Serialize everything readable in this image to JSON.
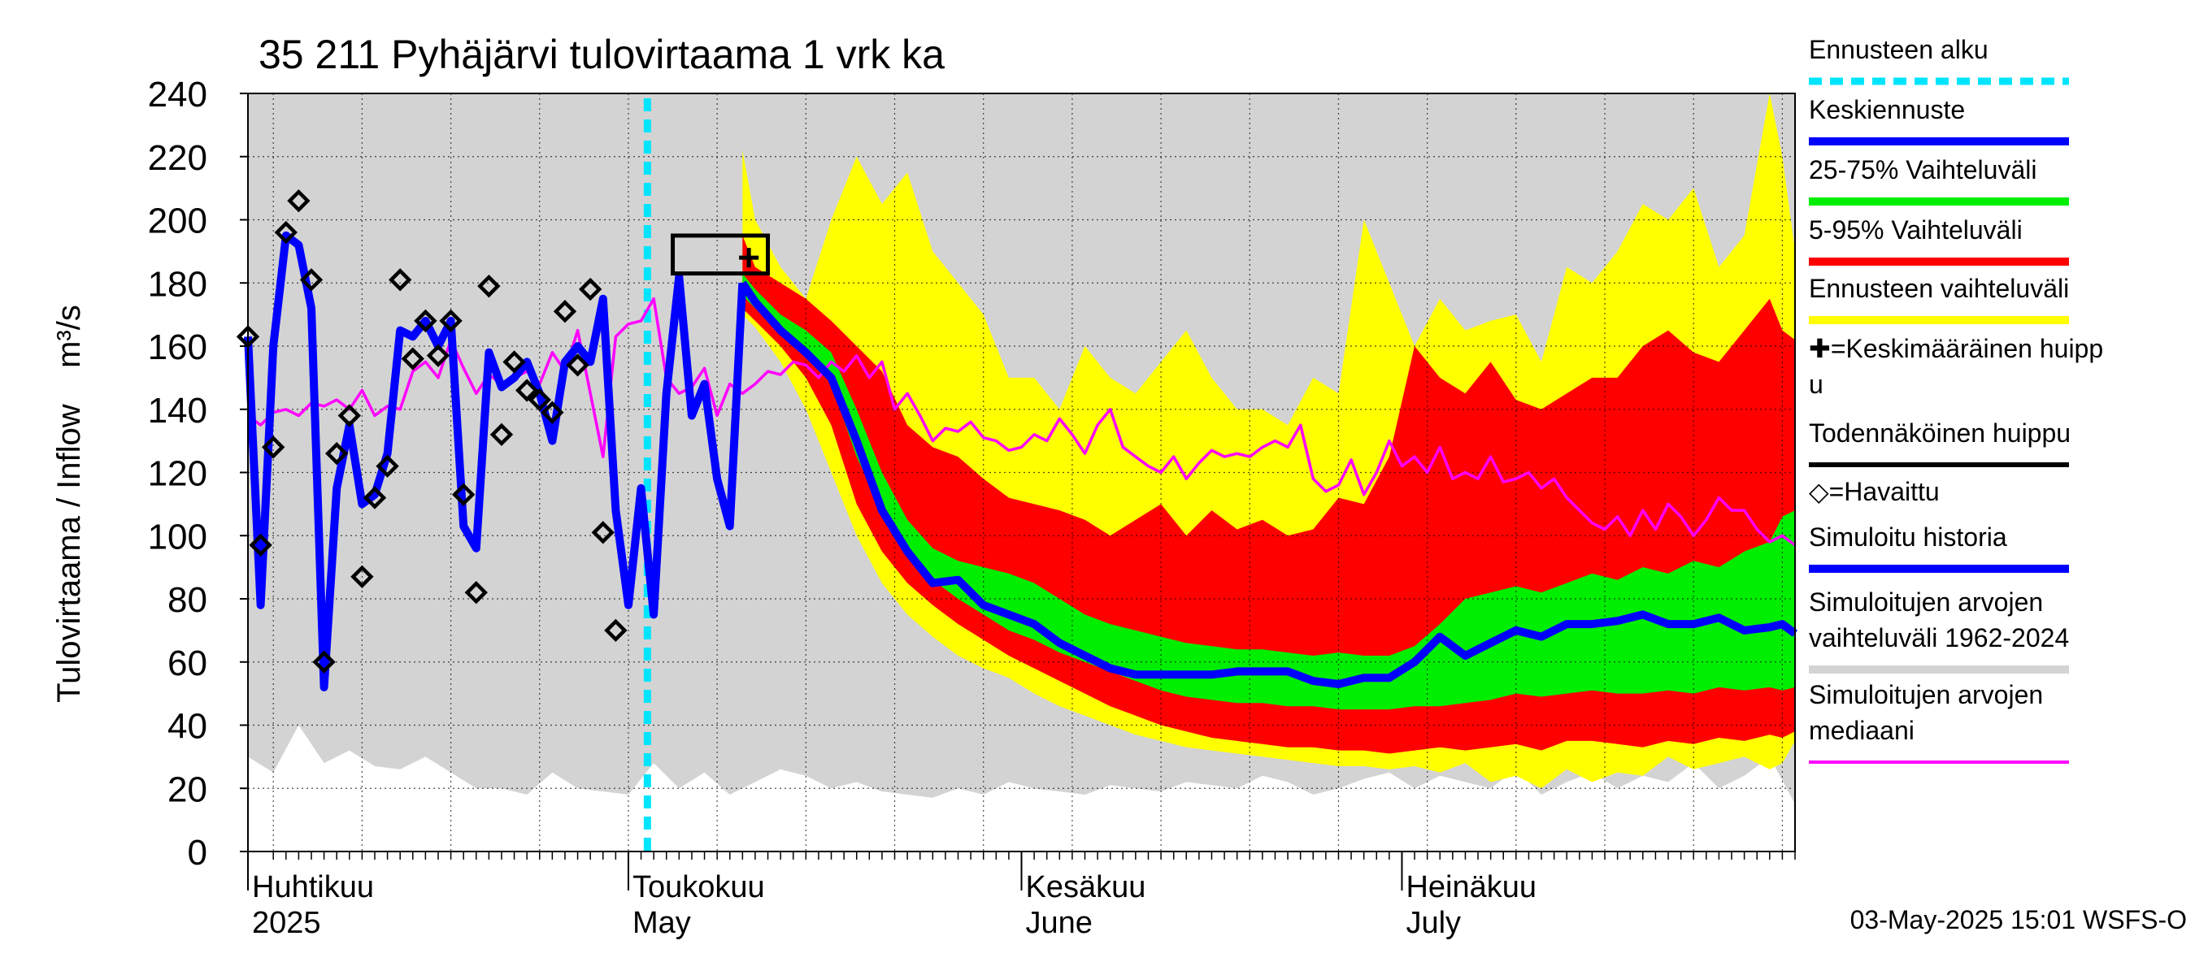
{
  "chart_data": {
    "type": "area",
    "title": "35 211 Pyhäjärvi tulovirtaama 1 vrk ka",
    "ylabel": "Tulovirtaama / Inflow    m³/s",
    "ylim": [
      0,
      240
    ],
    "yticks": [
      "0",
      "20",
      "40",
      "60",
      "80",
      "100",
      "120",
      "140",
      "160",
      "180",
      "200",
      "220",
      "240"
    ],
    "xlim_days": [
      0,
      122
    ],
    "x_unit": "days from 1 Apr 2025",
    "month_labels": [
      {
        "fi": "Huhtikuu",
        "en": "2025",
        "day": 0
      },
      {
        "fi": "Toukokuu",
        "en": "May",
        "day": 30
      },
      {
        "fi": "Kesäkuu",
        "en": "June",
        "day": 61
      },
      {
        "fi": "Heinäkuu",
        "en": "July",
        "day": 91
      }
    ],
    "forecast_start_day": 31.5,
    "peak_box": {
      "x0": 33.5,
      "x1": 41,
      "y0": 183,
      "y1": 195
    },
    "mean_peak": {
      "x": 39.5,
      "y": 188
    },
    "series": [
      {
        "name": "Simuloitujen arvojen vaihteluväli 1962-2024",
        "color": "#d3d3d3",
        "x": [
          0,
          2,
          4,
          6,
          8,
          10,
          12,
          14,
          16,
          18,
          20,
          22,
          24,
          26,
          28,
          30,
          32,
          34,
          36,
          38,
          40,
          42,
          44,
          46,
          48,
          50,
          52,
          54,
          56,
          58,
          60,
          62,
          64,
          66,
          68,
          70,
          72,
          74,
          76,
          78,
          80,
          82,
          84,
          86,
          88,
          90,
          92,
          94,
          96,
          98,
          100,
          102,
          104,
          106,
          108,
          110,
          112,
          114,
          116,
          118,
          120,
          122
        ],
        "low": [
          30,
          25,
          40,
          28,
          32,
          27,
          26,
          30,
          25,
          20,
          20,
          18,
          25,
          20,
          19,
          18,
          28,
          20,
          25,
          18,
          22,
          26,
          24,
          20,
          22,
          19,
          18,
          17,
          20,
          18,
          22,
          20,
          19,
          18,
          21,
          20,
          19,
          22,
          21,
          20,
          24,
          22,
          18,
          20,
          23,
          25,
          20,
          24,
          22,
          20,
          26,
          18,
          22,
          25,
          20,
          24,
          22,
          28,
          20,
          24,
          30,
          15
        ],
        "high": [
          240,
          240,
          240,
          240,
          240,
          240,
          240,
          240,
          240,
          240,
          240,
          240,
          240,
          240,
          240,
          240,
          240,
          240,
          240,
          240,
          240,
          240,
          240,
          240,
          240,
          240,
          240,
          240,
          240,
          240,
          240,
          240,
          240,
          240,
          240,
          240,
          240,
          240,
          240,
          240,
          240,
          240,
          240,
          240,
          240,
          240,
          240,
          240,
          240,
          240,
          240,
          240,
          240,
          240,
          240,
          240,
          240,
          240,
          240,
          240,
          240,
          240
        ]
      },
      {
        "name": "Ennusteen vaihteluväli",
        "color": "#ffff00",
        "x": [
          39,
          40,
          42,
          44,
          46,
          48,
          50,
          52,
          54,
          56,
          58,
          60,
          62,
          64,
          66,
          68,
          70,
          72,
          74,
          76,
          78,
          80,
          82,
          84,
          86,
          88,
          90,
          92,
          94,
          96,
          98,
          100,
          102,
          104,
          106,
          108,
          110,
          112,
          114,
          116,
          118,
          120,
          121,
          122
        ],
        "low": [
          170,
          166,
          155,
          140,
          120,
          100,
          85,
          75,
          68,
          62,
          58,
          55,
          50,
          46,
          43,
          40,
          37,
          35,
          33,
          32,
          31,
          30,
          29,
          28,
          27,
          27,
          26,
          27,
          25,
          28,
          22,
          24,
          20,
          26,
          22,
          25,
          24,
          30,
          26,
          28,
          30,
          26,
          28,
          35
        ],
        "high": [
          222,
          200,
          185,
          175,
          200,
          220,
          205,
          215,
          190,
          180,
          170,
          150,
          150,
          140,
          160,
          150,
          145,
          155,
          165,
          150,
          140,
          140,
          135,
          150,
          145,
          200,
          180,
          160,
          175,
          165,
          168,
          170,
          155,
          185,
          180,
          190,
          205,
          200,
          210,
          185,
          195,
          240,
          220,
          190
        ]
      },
      {
        "name": "5-95% Vaihteluväli",
        "color": "#ff0000",
        "x": [
          39,
          40,
          42,
          44,
          46,
          48,
          50,
          52,
          54,
          56,
          58,
          60,
          62,
          64,
          66,
          68,
          70,
          72,
          74,
          76,
          78,
          80,
          82,
          84,
          86,
          88,
          90,
          92,
          94,
          96,
          98,
          100,
          102,
          104,
          106,
          108,
          110,
          112,
          114,
          116,
          118,
          120,
          121,
          122
        ],
        "low": [
          172,
          168,
          160,
          150,
          135,
          110,
          95,
          85,
          78,
          72,
          67,
          62,
          58,
          54,
          50,
          46,
          43,
          40,
          38,
          36,
          35,
          34,
          33,
          33,
          32,
          32,
          31,
          32,
          33,
          32,
          33,
          34,
          32,
          35,
          35,
          34,
          33,
          35,
          34,
          36,
          35,
          37,
          36,
          38
        ],
        "high": [
          195,
          185,
          180,
          175,
          168,
          160,
          152,
          135,
          128,
          125,
          118,
          112,
          110,
          108,
          105,
          100,
          105,
          110,
          100,
          108,
          102,
          105,
          100,
          102,
          112,
          110,
          125,
          160,
          150,
          145,
          155,
          143,
          140,
          145,
          150,
          150,
          160,
          165,
          158,
          155,
          165,
          175,
          165,
          162
        ]
      },
      {
        "name": "25-75% Vaihteluväli",
        "color": "#00ee00",
        "x": [
          39,
          40,
          42,
          44,
          46,
          48,
          50,
          52,
          54,
          56,
          58,
          60,
          62,
          64,
          66,
          68,
          70,
          72,
          74,
          76,
          78,
          80,
          82,
          84,
          86,
          88,
          90,
          92,
          94,
          96,
          98,
          100,
          102,
          104,
          106,
          108,
          110,
          112,
          114,
          116,
          118,
          120,
          121,
          122
        ],
        "low": [
          176,
          172,
          165,
          158,
          148,
          125,
          108,
          95,
          86,
          80,
          75,
          70,
          67,
          63,
          60,
          57,
          54,
          51,
          49,
          48,
          47,
          47,
          46,
          46,
          45,
          45,
          45,
          46,
          46,
          47,
          48,
          50,
          49,
          50,
          51,
          50,
          50,
          51,
          50,
          52,
          51,
          52,
          51,
          52
        ],
        "high": [
          183,
          178,
          170,
          165,
          158,
          140,
          120,
          105,
          96,
          92,
          90,
          88,
          85,
          80,
          75,
          72,
          70,
          68,
          66,
          65,
          64,
          64,
          63,
          62,
          63,
          62,
          62,
          65,
          72,
          80,
          82,
          84,
          82,
          85,
          88,
          86,
          90,
          88,
          92,
          90,
          95,
          98,
          106,
          108
        ]
      }
    ],
    "lines": [
      {
        "name": "Simuloitujen arvojen mediaani",
        "color": "#ff00ff",
        "x": [
          0,
          1,
          2,
          3,
          4,
          5,
          6,
          7,
          8,
          9,
          10,
          11,
          12,
          13,
          14,
          15,
          16,
          17,
          18,
          19,
          20,
          21,
          22,
          23,
          24,
          25,
          26,
          27,
          28,
          29,
          30,
          31,
          32,
          33,
          34,
          35,
          36,
          37,
          38,
          39,
          40,
          41,
          42,
          43,
          44,
          45,
          46,
          47,
          48,
          49,
          50,
          51,
          52,
          53,
          54,
          55,
          56,
          57,
          58,
          59,
          60,
          61,
          62,
          63,
          64,
          65,
          66,
          67,
          68,
          69,
          70,
          71,
          72,
          73,
          74,
          75,
          76,
          77,
          78,
          79,
          80,
          81,
          82,
          83,
          84,
          85,
          86,
          87,
          88,
          89,
          90,
          91,
          92,
          93,
          94,
          95,
          96,
          97,
          98,
          99,
          100,
          101,
          102,
          103,
          104,
          105,
          106,
          107,
          108,
          109,
          110,
          111,
          112,
          113,
          114,
          115,
          116,
          117,
          118,
          119,
          120,
          121,
          122
        ],
        "y": [
          138,
          135,
          139,
          140,
          138,
          142,
          141,
          143,
          140,
          146,
          138,
          141,
          140,
          152,
          155,
          150,
          162,
          153,
          145,
          151,
          148,
          150,
          152,
          148,
          158,
          152,
          165,
          145,
          125,
          163,
          167,
          168,
          175,
          150,
          145,
          147,
          153,
          138,
          148,
          145,
          148,
          152,
          151,
          155,
          154,
          150,
          155,
          152,
          157,
          150,
          155,
          140,
          145,
          138,
          130,
          134,
          133,
          136,
          131,
          130,
          127,
          128,
          132,
          130,
          137,
          132,
          126,
          135,
          140,
          128,
          125,
          122,
          120,
          125,
          118,
          123,
          127,
          125,
          126,
          125,
          128,
          130,
          128,
          135,
          118,
          114,
          116,
          124,
          113,
          120,
          130,
          122,
          125,
          120,
          128,
          118,
          120,
          118,
          125,
          117,
          118,
          120,
          115,
          118,
          112,
          108,
          104,
          102,
          106,
          100,
          108,
          102,
          110,
          106,
          100,
          105,
          112,
          108,
          108,
          102,
          98,
          100,
          97
        ]
      },
      {
        "name": "Keskiennuste",
        "color": "#0000ff",
        "x": [
          39,
          40,
          42,
          44,
          46,
          48,
          50,
          52,
          54,
          56,
          58,
          60,
          62,
          64,
          66,
          68,
          70,
          72,
          74,
          76,
          78,
          80,
          82,
          84,
          86,
          88,
          90,
          92,
          94,
          96,
          98,
          100,
          102,
          104,
          106,
          108,
          110,
          112,
          114,
          116,
          118,
          120,
          121,
          122
        ],
        "y": [
          180,
          174,
          165,
          158,
          150,
          130,
          108,
          95,
          85,
          86,
          78,
          75,
          72,
          66,
          62,
          58,
          56,
          56,
          56,
          56,
          57,
          57,
          57,
          54,
          53,
          55,
          55,
          60,
          68,
          62,
          66,
          70,
          68,
          72,
          72,
          73,
          75,
          72,
          72,
          74,
          70,
          71,
          72,
          69
        ]
      },
      {
        "name": "Simuloitu historia",
        "color": "#0000ff",
        "x": [
          0,
          1,
          2,
          3,
          4,
          5,
          6,
          7,
          8,
          9,
          10,
          11,
          12,
          13,
          14,
          15,
          16,
          17,
          18,
          19,
          20,
          21,
          22,
          23,
          24,
          25,
          26,
          27,
          28,
          29,
          30,
          31,
          32,
          33,
          34,
          35,
          36,
          37,
          38,
          39
        ],
        "y": [
          163,
          78,
          160,
          195,
          192,
          172,
          52,
          115,
          135,
          110,
          113,
          126,
          165,
          163,
          168,
          160,
          168,
          103,
          96,
          158,
          147,
          150,
          155,
          145,
          130,
          155,
          160,
          155,
          175,
          108,
          78,
          115,
          75,
          145,
          182,
          138,
          148,
          118,
          103,
          180
        ]
      }
    ],
    "observed": {
      "name": "Havaittu",
      "marker": "diamond",
      "x": [
        0,
        1,
        2,
        3,
        4,
        5,
        6,
        7,
        8,
        9,
        10,
        11,
        12,
        13,
        14,
        15,
        16,
        17,
        18,
        19,
        20,
        21,
        22,
        23,
        24,
        25,
        26,
        27,
        28,
        29,
        30
      ],
      "y": [
        163,
        97,
        128,
        196,
        206,
        181,
        60,
        126,
        138,
        87,
        112,
        122,
        181,
        156,
        168,
        157,
        168,
        113,
        82,
        179,
        132,
        155,
        146,
        143,
        139,
        171,
        154,
        178,
        101,
        70,
        null
      ]
    },
    "legend": [
      {
        "label": "Ennusteen alku",
        "color": "#00e5ff",
        "style": "dashed"
      },
      {
        "label": "Keskiennuste",
        "color": "#0000ff",
        "style": "line"
      },
      {
        "label": "25-75% Vaihteluväli",
        "color": "#00ee00",
        "style": "line"
      },
      {
        "label": "5-95% Vaihteluväli",
        "color": "#ff0000",
        "style": "line"
      },
      {
        "label": "Ennusteen vaihteluväli",
        "color": "#ffff00",
        "style": "line"
      },
      {
        "label": "✚=Keskimääräinen huipp",
        "label2": "u",
        "color": "#000000",
        "style": "none"
      },
      {
        "label": "Todennäköinen huippu",
        "color": "#000000",
        "style": "line"
      },
      {
        "label": "◇=Havaittu",
        "color": "#000000",
        "style": "none"
      },
      {
        "label": "Simuloitu historia",
        "color": "#0000ff",
        "style": "line"
      },
      {
        "label": "Simuloitujen arvojen",
        "label2": "vaihteluväli 1962-2024",
        "color": "#d3d3d3",
        "style": "line"
      },
      {
        "label": "Simuloitujen arvojen",
        "label2": "mediaani",
        "color": "#ff00ff",
        "style": "line"
      }
    ],
    "footer": "03-May-2025 15:01 WSFS-O"
  }
}
